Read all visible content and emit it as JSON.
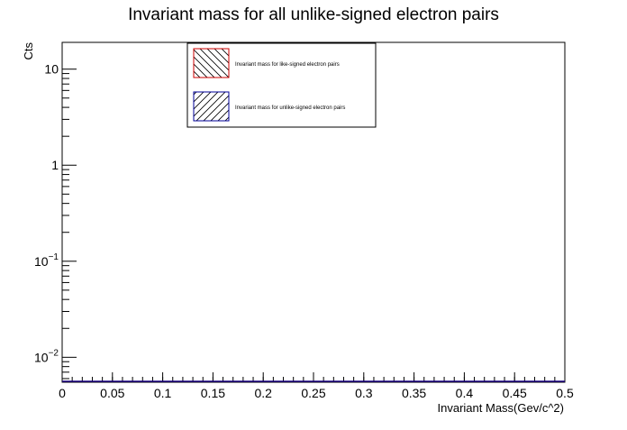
{
  "chart_data": {
    "type": "bar",
    "title": "Invariant mass for all unlike-signed electron pairs",
    "xlabel": "Invariant Mass(Gev/c^2)",
    "ylabel": "Cts",
    "xlim": [
      0,
      0.5
    ],
    "ylim": [
      0.0055,
      19
    ],
    "y_scale": "log",
    "grid": false,
    "legend_position": "top-center",
    "x_ticks": [
      {
        "value": 0,
        "label": "0"
      },
      {
        "value": 0.05,
        "label": "0.05"
      },
      {
        "value": 0.1,
        "label": "0.1"
      },
      {
        "value": 0.15,
        "label": "0.15"
      },
      {
        "value": 0.2,
        "label": "0.2"
      },
      {
        "value": 0.25,
        "label": "0.25"
      },
      {
        "value": 0.3,
        "label": "0.3"
      },
      {
        "value": 0.35,
        "label": "0.35"
      },
      {
        "value": 0.4,
        "label": "0.4"
      },
      {
        "value": 0.45,
        "label": "0.45"
      },
      {
        "value": 0.5,
        "label": "0.5"
      }
    ],
    "y_ticks": [
      {
        "value": 10,
        "base": "10",
        "exp": ""
      },
      {
        "value": 1,
        "base": "1",
        "exp": ""
      },
      {
        "value": 0.1,
        "base": "10",
        "exp": "−1"
      },
      {
        "value": 0.01,
        "base": "10",
        "exp": "−2"
      }
    ],
    "series": [
      {
        "name": "Invariant mass for like-signed electron pairs",
        "color": "#cc0000",
        "hatch": "backslash",
        "values": []
      },
      {
        "name": "Invariant mass for unlike-signed electron pairs",
        "color": "#000099",
        "hatch": "slash",
        "values": []
      }
    ]
  }
}
